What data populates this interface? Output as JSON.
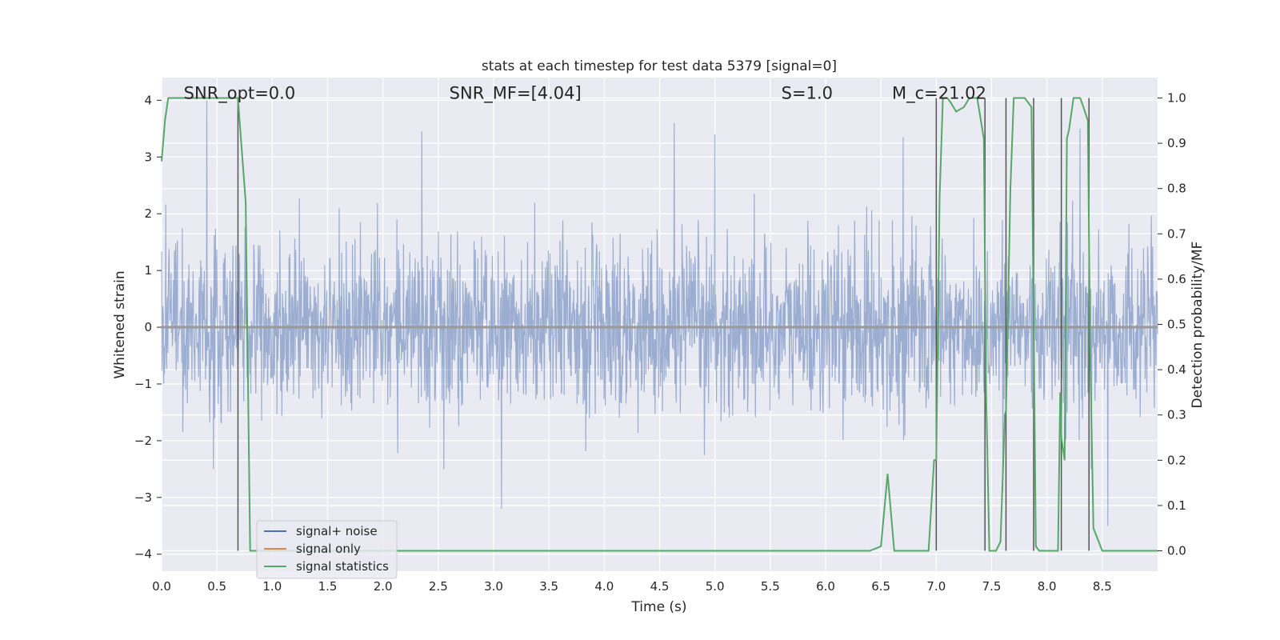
{
  "chart_data": {
    "type": "line",
    "title": "stats at each timestep for test data 5379 [signal=0]",
    "xlabel": "Time (s)",
    "ylabel_left": "Whitened strain",
    "ylabel_right": "Detection probability/MF",
    "xlim": [
      0.0,
      9.0
    ],
    "ylim_left": [
      -4.3,
      4.4
    ],
    "ylim_right": [
      -0.045,
      1.045
    ],
    "x_ticks": [
      "0.0",
      "0.5",
      "1.0",
      "1.5",
      "2.0",
      "2.5",
      "3.0",
      "3.5",
      "4.0",
      "4.5",
      "5.0",
      "5.5",
      "6.0",
      "6.5",
      "7.0",
      "7.5",
      "8.0",
      "8.5"
    ],
    "y_left_ticks": [
      "4",
      "3",
      "2",
      "1",
      "0",
      "−1",
      "−2",
      "−3",
      "−4"
    ],
    "y_right_ticks": [
      "1.0",
      "0.9",
      "0.8",
      "0.7",
      "0.6",
      "0.5",
      "0.4",
      "0.3",
      "0.2",
      "0.1",
      "0.0"
    ],
    "grid": true,
    "annotations": [
      {
        "id": "snr-opt",
        "text": "SNR_opt=0.0",
        "x": 0.2
      },
      {
        "id": "snr-mf",
        "text": "SNR_MF=[4.04]",
        "x": 2.6
      },
      {
        "id": "s",
        "text": "S=1.0",
        "x": 5.6
      },
      {
        "id": "mc",
        "text": "M_c=21.02",
        "x": 6.6
      }
    ],
    "legend": {
      "position": "lower-left",
      "entries": [
        {
          "label": "signal+ noise",
          "color": "#4c72b0"
        },
        {
          "label": "signal only",
          "color": "#dd8452"
        },
        {
          "label": "signal statistics",
          "color": "#55a868"
        }
      ]
    },
    "series": [
      {
        "name": "signal+ noise",
        "kind": "noise",
        "color": "#4c72b0",
        "opacity": 0.5,
        "typical_abs_amplitude": 1.5,
        "peaks": [
          [
            0.41,
            4.0
          ],
          [
            0.47,
            -2.5
          ],
          [
            2.35,
            3.45
          ],
          [
            2.55,
            -2.5
          ],
          [
            3.07,
            -3.2
          ],
          [
            4.63,
            3.6
          ],
          [
            5.0,
            3.4
          ],
          [
            6.7,
            3.35
          ],
          [
            7.6,
            -2.9
          ],
          [
            8.3,
            3.5
          ],
          [
            8.4,
            -2.5
          ],
          [
            8.55,
            -3.5
          ]
        ]
      },
      {
        "name": "signal only",
        "kind": "flat",
        "color": "#dd8452",
        "values": [
          [
            0.0,
            0.0
          ],
          [
            9.0,
            0.0
          ]
        ]
      },
      {
        "name": "signal statistics",
        "axis": "right",
        "color": "#55a868",
        "points": [
          [
            0.0,
            0.86
          ],
          [
            0.03,
            0.95
          ],
          [
            0.06,
            1.0
          ],
          [
            0.1,
            1.0
          ],
          [
            0.2,
            1.0
          ],
          [
            0.3,
            1.0
          ],
          [
            0.4,
            1.0
          ],
          [
            0.5,
            1.0
          ],
          [
            0.6,
            1.0
          ],
          [
            0.69,
            1.0
          ],
          [
            0.72,
            0.9
          ],
          [
            0.76,
            0.77
          ],
          [
            0.8,
            0.0
          ],
          [
            1.0,
            0.0
          ],
          [
            2.0,
            0.0
          ],
          [
            3.0,
            0.0
          ],
          [
            4.0,
            0.0
          ],
          [
            5.0,
            0.0
          ],
          [
            6.0,
            0.0
          ],
          [
            6.4,
            0.0
          ],
          [
            6.5,
            0.01
          ],
          [
            6.56,
            0.17
          ],
          [
            6.62,
            0.0
          ],
          [
            6.7,
            0.0
          ],
          [
            6.93,
            0.0
          ],
          [
            6.98,
            0.2
          ],
          [
            7.0,
            0.2
          ],
          [
            7.03,
            0.78
          ],
          [
            7.06,
            1.0
          ],
          [
            7.1,
            1.0
          ],
          [
            7.13,
            0.99
          ],
          [
            7.18,
            0.97
          ],
          [
            7.25,
            0.98
          ],
          [
            7.3,
            1.0
          ],
          [
            7.37,
            1.0
          ],
          [
            7.43,
            0.91
          ],
          [
            7.45,
            0.35
          ],
          [
            7.48,
            0.0
          ],
          [
            7.54,
            0.0
          ],
          [
            7.58,
            0.02
          ],
          [
            7.62,
            0.3
          ],
          [
            7.63,
            0.31
          ],
          [
            7.67,
            0.8
          ],
          [
            7.7,
            1.0
          ],
          [
            7.8,
            1.0
          ],
          [
            7.86,
            0.98
          ],
          [
            7.88,
            0.5
          ],
          [
            7.9,
            0.01
          ],
          [
            7.93,
            0.0
          ],
          [
            8.1,
            0.0
          ],
          [
            8.12,
            0.35
          ],
          [
            8.13,
            0.25
          ],
          [
            8.16,
            0.2
          ],
          [
            8.18,
            0.91
          ],
          [
            8.2,
            0.93
          ],
          [
            8.24,
            1.0
          ],
          [
            8.3,
            1.0
          ],
          [
            8.33,
            0.98
          ],
          [
            8.37,
            0.95
          ],
          [
            8.39,
            0.45
          ],
          [
            8.42,
            0.05
          ],
          [
            8.5,
            0.0
          ],
          [
            8.6,
            0.0
          ],
          [
            8.8,
            0.0
          ],
          [
            9.0,
            0.0
          ]
        ]
      }
    ],
    "vertical_markers": [
      0.69,
      7.0,
      7.44,
      7.63,
      7.88,
      8.13,
      8.38
    ]
  }
}
